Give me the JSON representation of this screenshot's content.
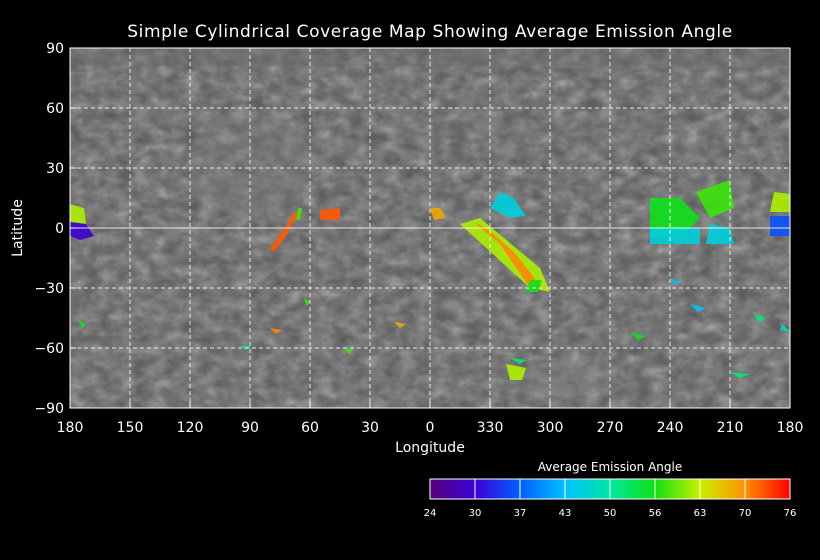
{
  "title": "Simple Cylindrical Coverage Map Showing Average Emission Angle",
  "xlabel": "Longitude",
  "ylabel": "Latitude",
  "x_ticks": [
    "180",
    "150",
    "120",
    "90",
    "60",
    "30",
    "0",
    "330",
    "300",
    "270",
    "240",
    "210",
    "180"
  ],
  "y_ticks": [
    "90",
    "60",
    "30",
    "0",
    "−30",
    "−60",
    "−90"
  ],
  "colorbar": {
    "title": "Average Emission Angle",
    "ticks": [
      "24",
      "30",
      "37",
      "43",
      "50",
      "56",
      "63",
      "70",
      "76"
    ],
    "colors": [
      "#5a007a",
      "#3a00d8",
      "#0060ff",
      "#00c0ff",
      "#00e8a0",
      "#10e010",
      "#c8f000",
      "#ff9000",
      "#ff0000"
    ]
  },
  "colors": {
    "background": "#000000",
    "map_base": "#555555",
    "grid": "#ffffff"
  },
  "chart_data": {
    "type": "heatmap",
    "title": "Simple Cylindrical Coverage Map Showing Average Emission Angle",
    "xlabel": "Longitude",
    "ylabel": "Latitude",
    "x_direction": "west-positive, 180 to 0 to 180",
    "xlim": [
      180,
      -180
    ],
    "ylim": [
      -90,
      90
    ],
    "grid": true,
    "value_range": [
      24,
      76
    ],
    "regions": [
      {
        "lon": 177,
        "lat": 8,
        "angle": 62,
        "shape": [
          [
            180,
            12
          ],
          [
            173,
            10
          ],
          [
            172,
            2
          ],
          [
            180,
            3
          ]
        ]
      },
      {
        "lon": 175,
        "lat": 0,
        "angle": 30,
        "shape": [
          [
            180,
            3
          ],
          [
            172,
            2
          ],
          [
            168,
            -4
          ],
          [
            175,
            -6
          ],
          [
            180,
            -4
          ]
        ]
      },
      {
        "lon": 72,
        "lat": -2,
        "angle": 72,
        "shape": [
          [
            64,
            6
          ],
          [
            68,
            4
          ],
          [
            72,
            -4
          ],
          [
            78,
            -12
          ],
          [
            80,
            -10
          ],
          [
            74,
            -2
          ],
          [
            68,
            8
          ]
        ]
      },
      {
        "lon": 66,
        "lat": 8,
        "angle": 58,
        "shape": [
          [
            64,
            10
          ],
          [
            66,
            10
          ],
          [
            67,
            4
          ],
          [
            65,
            4
          ]
        ]
      },
      {
        "lon": 50,
        "lat": 7,
        "angle": 72,
        "shape": [
          [
            45,
            10
          ],
          [
            55,
            9
          ],
          [
            55,
            4
          ],
          [
            45,
            4
          ]
        ]
      },
      {
        "lon": 352,
        "lat": 7,
        "angle": 68,
        "shape": [
          [
            -5,
            10
          ],
          [
            0,
            10
          ],
          [
            -2,
            4
          ],
          [
            -8,
            5
          ]
        ]
      },
      {
        "lon": 305,
        "lat": -10,
        "angle": 62,
        "shape": [
          [
            -25,
            5
          ],
          [
            -15,
            2
          ],
          [
            -50,
            -30
          ],
          [
            -60,
            -32
          ],
          [
            -55,
            -20
          ]
        ]
      },
      {
        "lon": 305,
        "lat": -15,
        "angle": 70,
        "shape": [
          [
            -22,
            3
          ],
          [
            -35,
            -8
          ],
          [
            -50,
            -30
          ],
          [
            -56,
            -30
          ],
          [
            -42,
            -12
          ],
          [
            -28,
            0
          ]
        ]
      },
      {
        "lon": 318,
        "lat": 10,
        "angle": 46,
        "shape": [
          [
            -35,
            18
          ],
          [
            -42,
            15
          ],
          [
            -48,
            6
          ],
          [
            -40,
            5
          ],
          [
            -30,
            10
          ]
        ]
      },
      {
        "lon": 305,
        "lat": -28,
        "angle": 56,
        "shape": [
          [
            -50,
            -26
          ],
          [
            -56,
            -26
          ],
          [
            -54,
            -32
          ],
          [
            -48,
            -32
          ]
        ]
      },
      {
        "lon": 235,
        "lat": 5,
        "angle": 56,
        "shape": [
          [
            -110,
            15
          ],
          [
            -125,
            15
          ],
          [
            -135,
            5
          ],
          [
            -125,
            -5
          ],
          [
            -110,
            -5
          ]
        ]
      },
      {
        "lon": 235,
        "lat": 0,
        "angle": 46,
        "shape": [
          [
            -110,
            0
          ],
          [
            -135,
            0
          ],
          [
            -135,
            -8
          ],
          [
            -110,
            -8
          ]
        ]
      },
      {
        "lon": 218,
        "lat": 5,
        "angle": 58,
        "shape": [
          [
            -133,
            18
          ],
          [
            -150,
            24
          ],
          [
            -152,
            10
          ],
          [
            -140,
            5
          ]
        ]
      },
      {
        "lon": 215,
        "lat": 0,
        "angle": 46,
        "shape": [
          [
            -140,
            2
          ],
          [
            -150,
            0
          ],
          [
            -152,
            -8
          ],
          [
            -138,
            -8
          ]
        ]
      },
      {
        "lon": 188,
        "lat": 10,
        "angle": 62,
        "shape": [
          [
            -172,
            18
          ],
          [
            -180,
            17
          ],
          [
            -180,
            8
          ],
          [
            -170,
            8
          ]
        ]
      },
      {
        "lon": 188,
        "lat": 0,
        "angle": 36,
        "shape": [
          [
            -170,
            6
          ],
          [
            -180,
            6
          ],
          [
            -180,
            -4
          ],
          [
            -170,
            -4
          ]
        ]
      },
      {
        "lon": 322,
        "lat": -70,
        "angle": 62,
        "shape": [
          [
            -38,
            -68
          ],
          [
            -48,
            -70
          ],
          [
            -46,
            -76
          ],
          [
            -40,
            -76
          ]
        ]
      },
      {
        "lon": 318,
        "lat": -66,
        "angle": 52,
        "shape": [
          [
            -40,
            -65
          ],
          [
            -48,
            -66
          ],
          [
            -45,
            -68
          ]
        ]
      },
      {
        "lon": 205,
        "lat": -73,
        "angle": 52,
        "shape": [
          [
            -150,
            -72
          ],
          [
            -160,
            -73
          ],
          [
            -155,
            -75
          ]
        ]
      },
      {
        "lon": 255,
        "lat": -55,
        "angle": 56,
        "shape": [
          [
            -100,
            -52
          ],
          [
            -108,
            -54
          ],
          [
            -104,
            -56
          ]
        ]
      },
      {
        "lon": 175,
        "lat": -48,
        "angle": 56,
        "shape": [
          [
            176,
            -46
          ],
          [
            172,
            -48
          ],
          [
            174,
            -50
          ]
        ]
      },
      {
        "lon": 92,
        "lat": -59,
        "angle": 52,
        "shape": [
          [
            95,
            -59
          ],
          [
            89,
            -59
          ],
          [
            92,
            -61
          ]
        ]
      },
      {
        "lon": 40,
        "lat": -61,
        "angle": 58,
        "shape": [
          [
            38,
            -60
          ],
          [
            43,
            -61
          ],
          [
            40,
            -63
          ]
        ]
      },
      {
        "lon": 78,
        "lat": -51,
        "angle": 70,
        "shape": [
          [
            80,
            -50
          ],
          [
            74,
            -51
          ],
          [
            77,
            -53
          ]
        ]
      },
      {
        "lon": 15,
        "lat": -48,
        "angle": 68,
        "shape": [
          [
            18,
            -47
          ],
          [
            12,
            -48
          ],
          [
            15,
            -50
          ]
        ]
      },
      {
        "lon": 62,
        "lat": -37,
        "angle": 58,
        "shape": [
          [
            63,
            -35
          ],
          [
            60,
            -37
          ],
          [
            62,
            -39
          ]
        ]
      },
      {
        "lon": 235,
        "lat": -27,
        "angle": 44,
        "shape": [
          [
            -120,
            -25
          ],
          [
            -126,
            -27
          ],
          [
            -122,
            -28
          ]
        ]
      },
      {
        "lon": 225,
        "lat": -40,
        "angle": 44,
        "shape": [
          [
            -130,
            -38
          ],
          [
            -138,
            -40
          ],
          [
            -134,
            -42
          ]
        ]
      },
      {
        "lon": 195,
        "lat": -45,
        "angle": 52,
        "shape": [
          [
            -162,
            -43
          ],
          [
            -168,
            -45
          ],
          [
            -164,
            -47
          ]
        ]
      },
      {
        "lon": 183,
        "lat": -50,
        "angle": 48,
        "shape": [
          [
            -176,
            -48
          ],
          [
            -180,
            -52
          ],
          [
            -175,
            -51
          ]
        ]
      }
    ]
  }
}
